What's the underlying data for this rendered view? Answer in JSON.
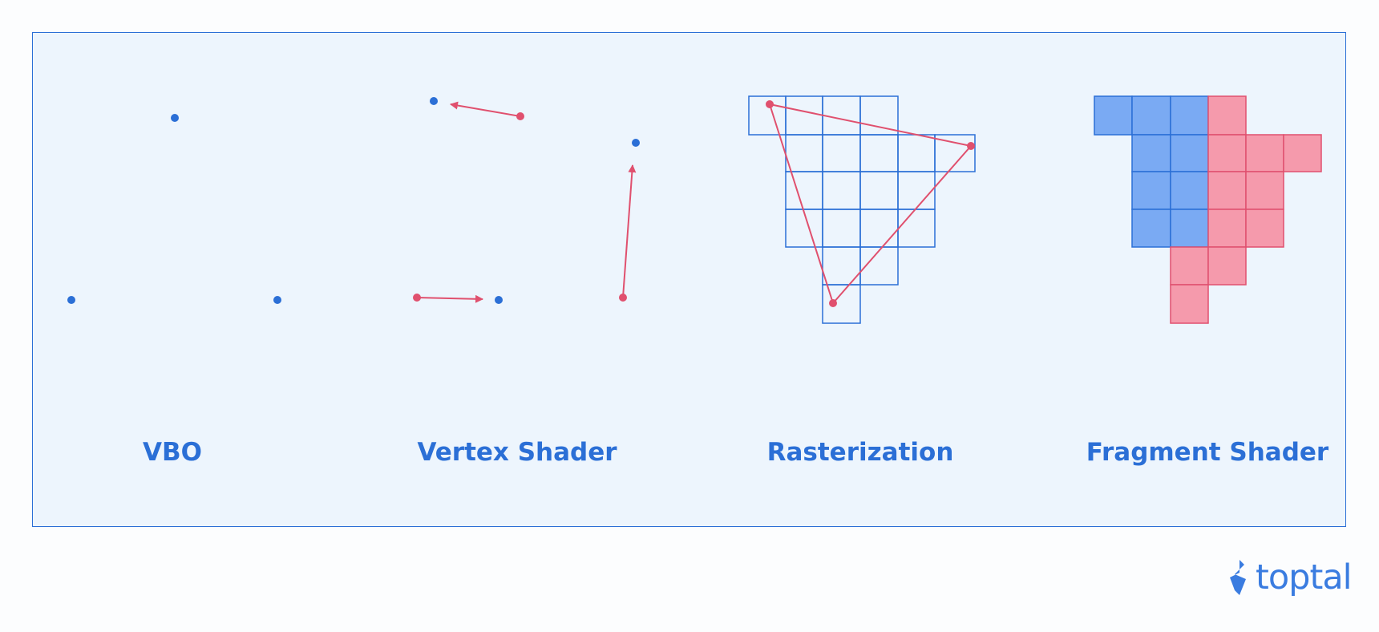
{
  "stages": [
    {
      "id": "vbo",
      "label": "VBO"
    },
    {
      "id": "vertex-shader",
      "label": "Vertex Shader"
    },
    {
      "id": "rasterization",
      "label": "Rasterization"
    },
    {
      "id": "fragment-shader",
      "label": "Fragment Shader"
    }
  ],
  "logo": {
    "text": "toptal",
    "icon": "toptal-mark-icon"
  },
  "colors": {
    "blue": "#2b6fd6",
    "red": "#e0506e",
    "panel": "#edf5fd",
    "fragment_blue": "#7aaaf3",
    "fragment_pink": "#f59aac",
    "logo": "#3a7ce0"
  }
}
